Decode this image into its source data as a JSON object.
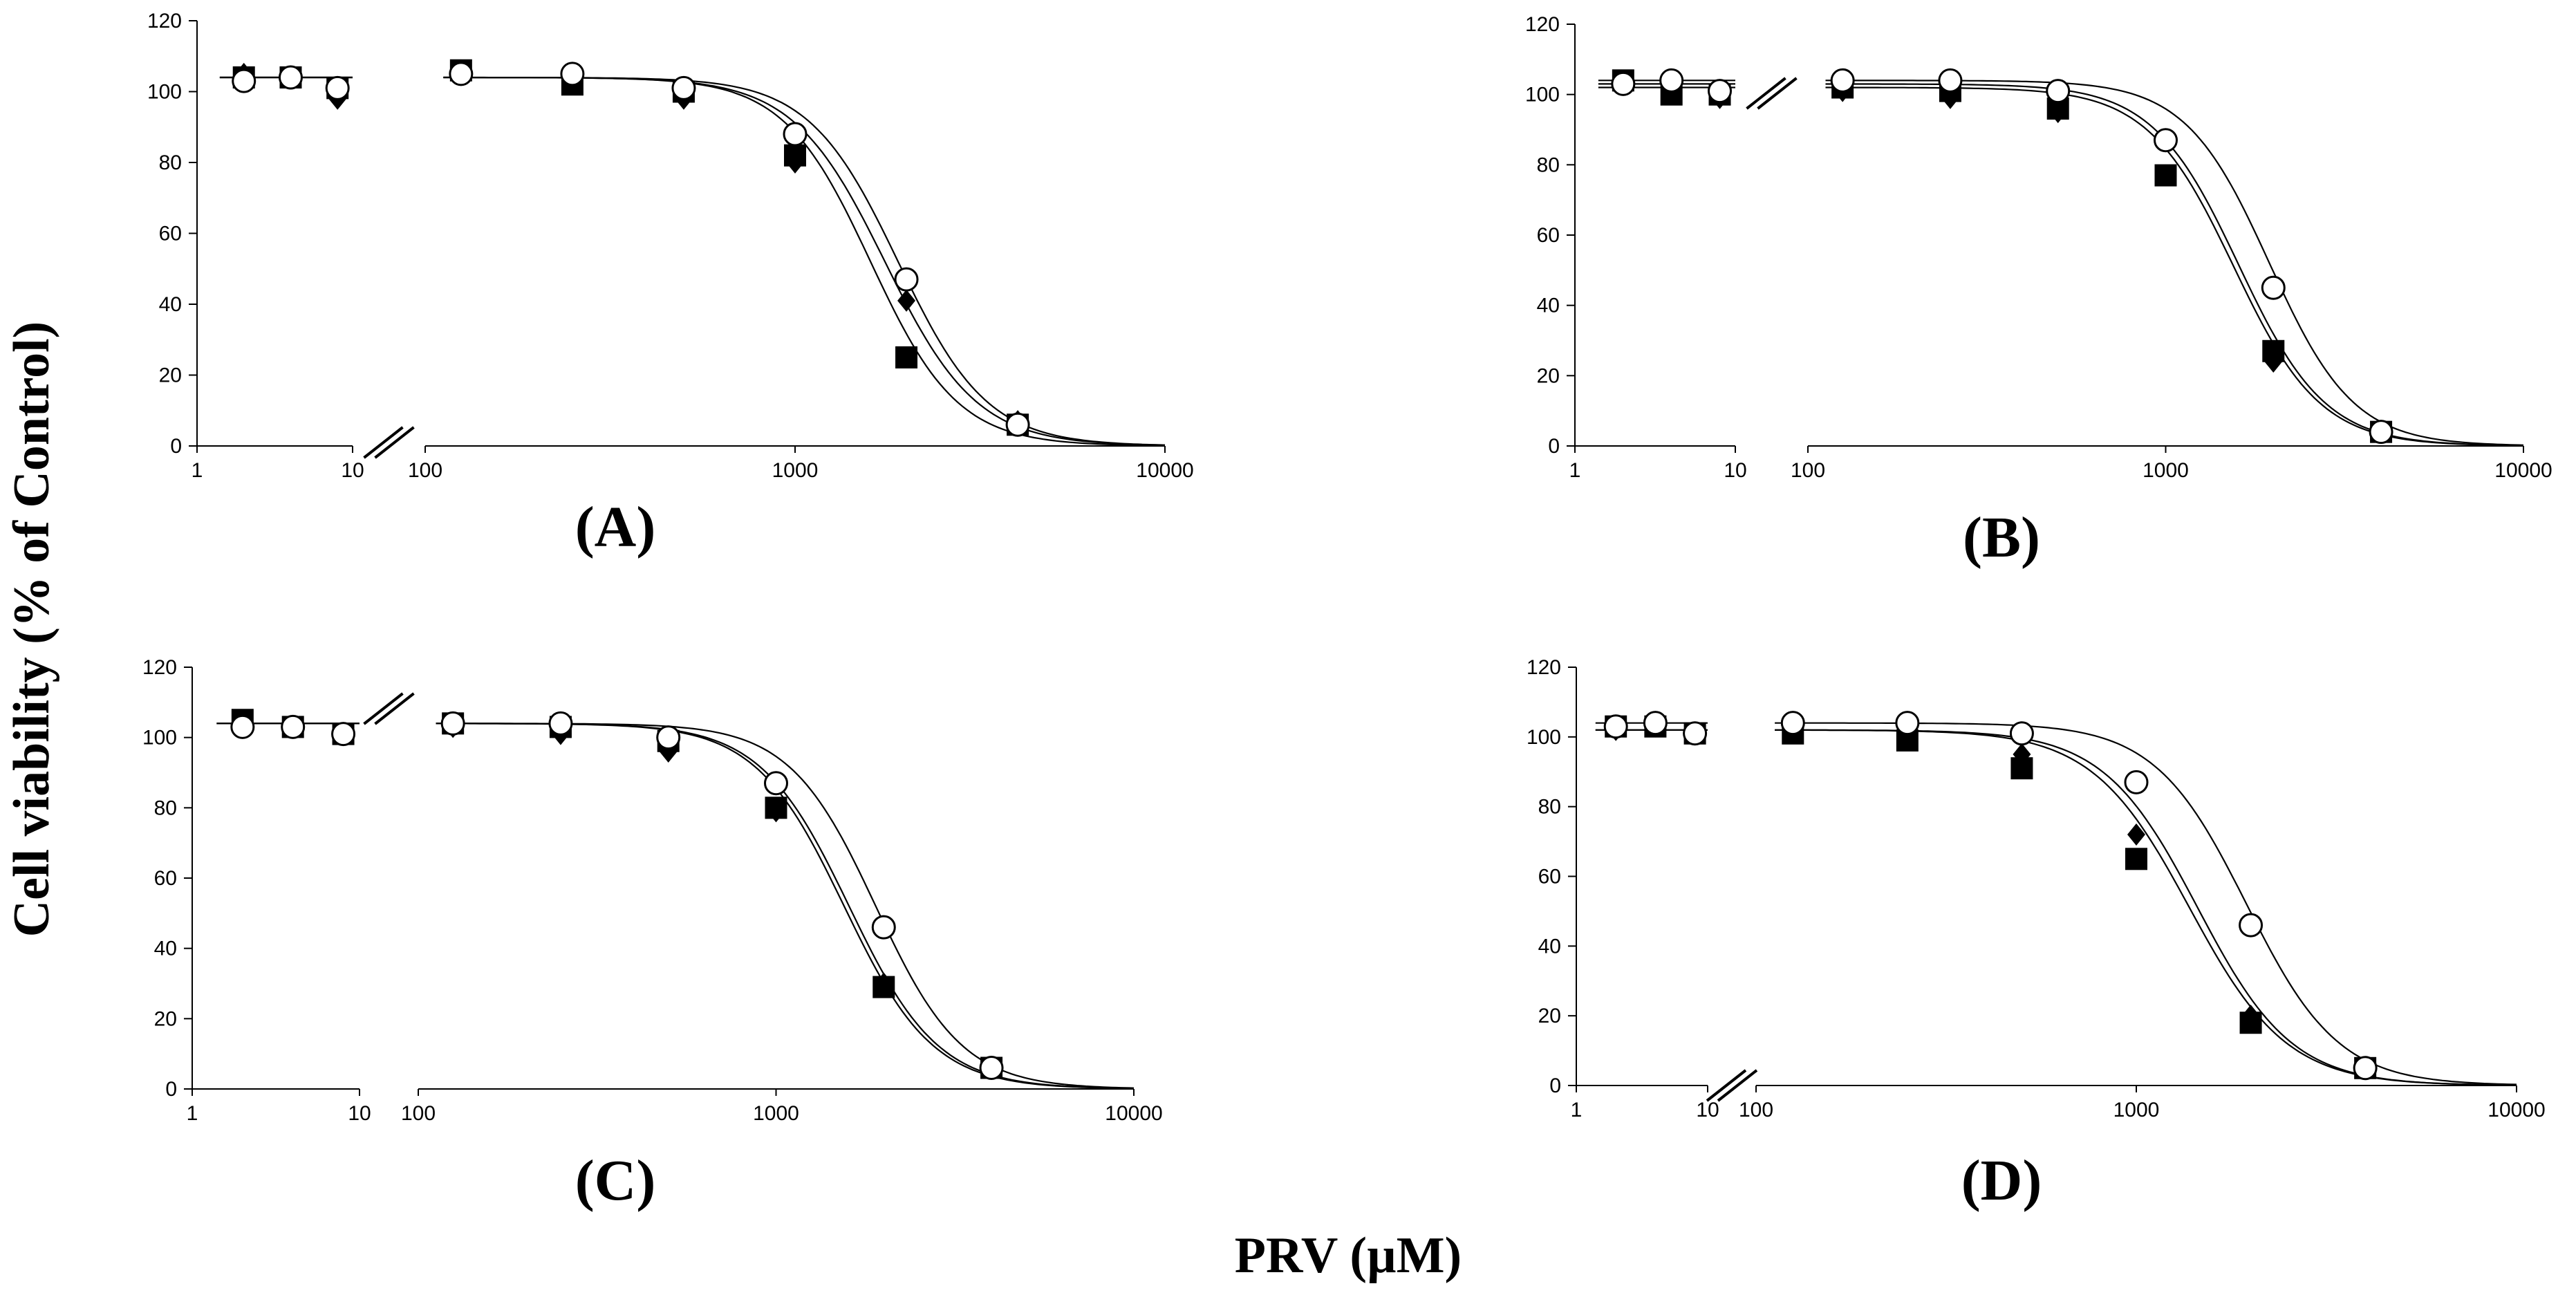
{
  "figure": {
    "ylabel": "Cell viability (% of Control)",
    "xlabel": "PRV (µM)"
  },
  "chart_data": [
    {
      "panel": "A",
      "label": "(A)",
      "type": "scatter",
      "scale": "log",
      "xlim": [
        1,
        10000
      ],
      "axis_break": [
        10,
        100
      ],
      "ylim": [
        0,
        120
      ],
      "yticks": [
        "0",
        "20",
        "40",
        "60",
        "80",
        "100",
        "120"
      ],
      "xticks_left": [
        "1",
        "10"
      ],
      "xticks_right": [
        "100",
        "1000",
        "10000"
      ],
      "series": [
        {
          "marker": "diamond",
          "x": [
            2,
            4,
            8,
            125,
            250,
            500,
            1000,
            2000,
            4000
          ],
          "y": [
            105,
            104,
            98,
            106,
            103,
            98,
            80,
            41,
            7
          ]
        },
        {
          "marker": "square",
          "x": [
            2,
            4,
            8,
            125,
            250,
            500,
            1000,
            2000,
            4000
          ],
          "y": [
            104,
            104,
            101,
            106,
            102,
            100,
            82,
            25,
            6
          ]
        },
        {
          "marker": "circle",
          "x": [
            2,
            4,
            8,
            125,
            250,
            500,
            1000,
            2000,
            4000
          ],
          "y": [
            103,
            104,
            101,
            105,
            105,
            101,
            88,
            47,
            6
          ]
        }
      ],
      "curves": [
        {
          "top": 104,
          "ic50": 1750,
          "hill": 3.5
        },
        {
          "top": 104,
          "ic50": 1600,
          "hill": 3.7
        },
        {
          "top": 104,
          "ic50": 1900,
          "hill": 3.6
        }
      ]
    },
    {
      "panel": "B",
      "label": "(B)",
      "type": "scatter",
      "scale": "log",
      "xlim": [
        1,
        10000
      ],
      "axis_break": [
        10,
        100
      ],
      "ylim": [
        0,
        120
      ],
      "yticks": [
        "0",
        "20",
        "40",
        "60",
        "80",
        "100",
        "120"
      ],
      "xticks_left": [
        "1",
        "10"
      ],
      "xticks_right": [
        "100",
        "1000",
        "10000"
      ],
      "series": [
        {
          "marker": "diamond",
          "x": [
            2,
            4,
            8,
            125,
            250,
            500,
            1000,
            2000,
            4000
          ],
          "y": [
            104,
            101,
            99,
            101,
            99,
            95,
            77,
            24,
            4
          ]
        },
        {
          "marker": "square",
          "x": [
            2,
            4,
            8,
            125,
            250,
            500,
            1000,
            2000,
            4000
          ],
          "y": [
            104,
            100,
            100,
            102,
            101,
            96,
            77,
            27,
            4
          ]
        },
        {
          "marker": "circle",
          "x": [
            2,
            4,
            8,
            125,
            250,
            500,
            1000,
            2000,
            4000
          ],
          "y": [
            103,
            104,
            101,
            104,
            104,
            101,
            87,
            45,
            4
          ]
        }
      ],
      "curves": [
        {
          "top": 102,
          "ic50": 1550,
          "hill": 3.6
        },
        {
          "top": 103,
          "ic50": 1600,
          "hill": 3.6
        },
        {
          "top": 104,
          "ic50": 1950,
          "hill": 3.7
        }
      ]
    },
    {
      "panel": "C",
      "label": "(C)",
      "type": "scatter",
      "scale": "log",
      "xlim": [
        1,
        10000
      ],
      "axis_break": [
        10,
        100
      ],
      "ylim": [
        0,
        120
      ],
      "yticks": [
        "0",
        "20",
        "40",
        "60",
        "80",
        "100",
        "120"
      ],
      "xticks_left": [
        "1",
        "10"
      ],
      "xticks_right": [
        "100",
        "1000",
        "10000"
      ],
      "series": [
        {
          "marker": "diamond",
          "x": [
            2,
            4,
            8,
            125,
            250,
            500,
            1000,
            2000,
            4000
          ],
          "y": [
            104,
            103,
            101,
            103,
            101,
            96,
            79,
            30,
            6
          ]
        },
        {
          "marker": "square",
          "x": [
            2,
            4,
            8,
            125,
            250,
            500,
            1000,
            2000,
            4000
          ],
          "y": [
            105,
            103,
            101,
            104,
            103,
            99,
            80,
            29,
            6
          ]
        },
        {
          "marker": "circle",
          "x": [
            2,
            4,
            8,
            125,
            250,
            500,
            1000,
            2000,
            4000
          ],
          "y": [
            103,
            103,
            101,
            104,
            104,
            100,
            87,
            46,
            6
          ]
        }
      ],
      "curves": [
        {
          "top": 104,
          "ic50": 1550,
          "hill": 3.5
        },
        {
          "top": 104,
          "ic50": 1600,
          "hill": 3.5
        },
        {
          "top": 104,
          "ic50": 1900,
          "hill": 3.6
        }
      ]
    },
    {
      "panel": "D",
      "label": "(D)",
      "type": "scatter",
      "scale": "log",
      "xlim": [
        1,
        10000
      ],
      "axis_break": [
        10,
        100
      ],
      "ylim": [
        0,
        120
      ],
      "yticks": [
        "0",
        "20",
        "40",
        "60",
        "80",
        "100",
        "120"
      ],
      "xticks_left": [
        "1",
        "10"
      ],
      "xticks_right": [
        "100",
        "1000",
        "10000"
      ],
      "series": [
        {
          "marker": "diamond",
          "x": [
            2,
            4,
            8,
            125,
            250,
            500,
            1000,
            2000,
            4000
          ],
          "y": [
            102,
            103,
            101,
            102,
            100,
            95,
            72,
            20,
            5
          ]
        },
        {
          "marker": "square",
          "x": [
            2,
            4,
            8,
            125,
            250,
            500,
            1000,
            2000,
            4000
          ],
          "y": [
            103,
            103,
            101,
            101,
            99,
            91,
            65,
            18,
            5
          ]
        },
        {
          "marker": "circle",
          "x": [
            2,
            4,
            8,
            125,
            250,
            500,
            1000,
            2000,
            4000
          ],
          "y": [
            103,
            104,
            101,
            104,
            104,
            101,
            87,
            46,
            5
          ]
        }
      ],
      "curves": [
        {
          "top": 102,
          "ic50": 1450,
          "hill": 3.5
        },
        {
          "top": 102,
          "ic50": 1380,
          "hill": 3.4
        },
        {
          "top": 104,
          "ic50": 1950,
          "hill": 3.6
        }
      ]
    }
  ]
}
